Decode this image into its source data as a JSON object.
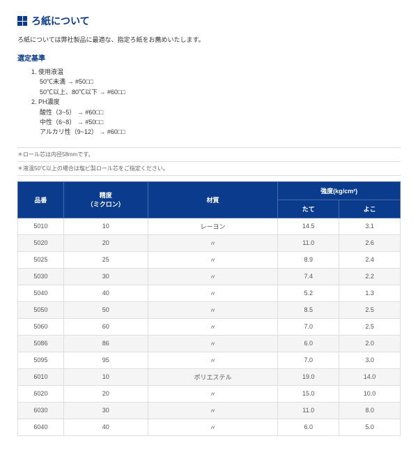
{
  "title": "ろ紙について",
  "intro": "ろ紙については弊社製品に最適な、指定ろ紙をお薦めいたします。",
  "criteria_heading": "選定基準",
  "criteria": [
    {
      "num": "1.",
      "label": "使用液温",
      "subs": [
        "50℃未満 → #50□□",
        "50℃以上、80℃以下 → #60□□"
      ]
    },
    {
      "num": "2.",
      "label": "PH濃度",
      "subs": [
        "酸性（3~5） → #60□□",
        "中性（6~8） → #50□□",
        "アルカリ性（9~12） → #60□□"
      ]
    }
  ],
  "notes": [
    "＊ロール芯は内径58mmです。",
    "＊液温50℃以上の場合は塩ビ製ロール芯をご指定ください。"
  ],
  "table": {
    "headers": {
      "code": "品番",
      "precision": "精度",
      "precision_sub": "（ミクロン）",
      "material": "材質",
      "strength": "強度(kg/cm²)",
      "tate": "たて",
      "yoko": "よこ"
    },
    "rows": [
      {
        "code": "5010",
        "prec": "10",
        "mat": "レーヨン",
        "tate": "14.5",
        "yoko": "3.1"
      },
      {
        "code": "5020",
        "prec": "20",
        "mat": "〃",
        "tate": "11.0",
        "yoko": "2.6"
      },
      {
        "code": "5025",
        "prec": "25",
        "mat": "〃",
        "tate": "8.9",
        "yoko": "2.4"
      },
      {
        "code": "5030",
        "prec": "30",
        "mat": "〃",
        "tate": "7.4",
        "yoko": "2.2"
      },
      {
        "code": "5040",
        "prec": "40",
        "mat": "〃",
        "tate": "5.2",
        "yoko": "1.3"
      },
      {
        "code": "5050",
        "prec": "50",
        "mat": "〃",
        "tate": "8.5",
        "yoko": "2.5"
      },
      {
        "code": "5060",
        "prec": "60",
        "mat": "〃",
        "tate": "7.0",
        "yoko": "2.5"
      },
      {
        "code": "5086",
        "prec": "86",
        "mat": "〃",
        "tate": "6.0",
        "yoko": "2.0"
      },
      {
        "code": "5095",
        "prec": "95",
        "mat": "〃",
        "tate": "7.0",
        "yoko": "3.0"
      },
      {
        "code": "6010",
        "prec": "10",
        "mat": "ポリエステル",
        "tate": "19.0",
        "yoko": "14.0"
      },
      {
        "code": "6020",
        "prec": "20",
        "mat": "〃",
        "tate": "15.0",
        "yoko": "10.0"
      },
      {
        "code": "6030",
        "prec": "30",
        "mat": "〃",
        "tate": "11.0",
        "yoko": "8.0"
      },
      {
        "code": "6040",
        "prec": "40",
        "mat": "〃",
        "tate": "6.0",
        "yoko": "5.0"
      }
    ]
  }
}
